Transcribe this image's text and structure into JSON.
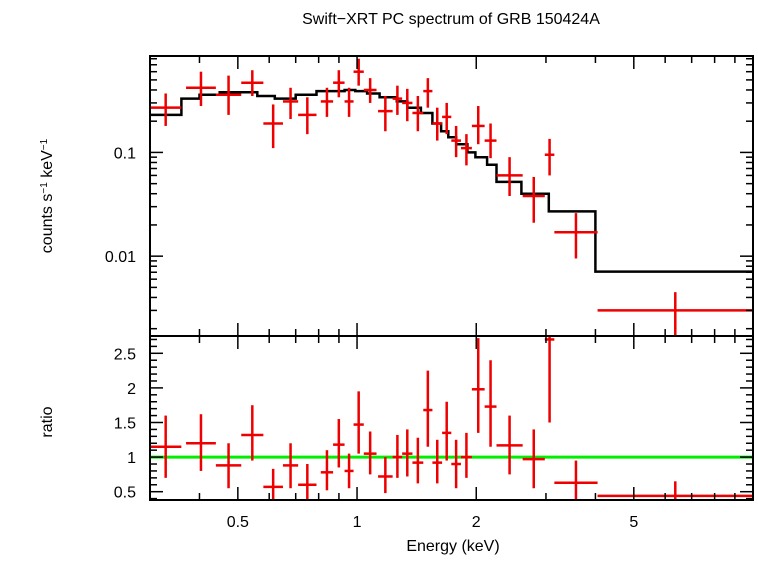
{
  "chart_data": {
    "type": "scatter",
    "title": "Swift−XRT PC spectrum of GRB 150424A",
    "xlabel": "Energy (keV)",
    "x_scale": "log",
    "xlim": [
      0.3,
      10
    ],
    "x_ticks": [
      {
        "value": 0.5,
        "label": "0.5"
      },
      {
        "value": 1,
        "label": "1"
      },
      {
        "value": 2,
        "label": "2"
      },
      {
        "value": 5,
        "label": "5"
      }
    ],
    "colors": {
      "data": "#ee0000",
      "model": "#000000",
      "ratio_line": "#00ee00",
      "axes": "#000000"
    },
    "panels": [
      {
        "id": "spectrum",
        "ylabel_main": "counts s",
        "ylabel_sup1": "−1",
        "ylabel_mid": " keV",
        "ylabel_sup2": "−1",
        "y_scale": "log",
        "ylim": [
          0.0017,
          0.85
        ],
        "y_ticks": [
          {
            "value": 0.01,
            "label": "0.01"
          },
          {
            "value": 0.1,
            "label": "0.1"
          }
        ],
        "model_steps": [
          {
            "e0": 0.3,
            "e1": 0.36,
            "y": 0.23
          },
          {
            "e0": 0.36,
            "e1": 0.4,
            "y": 0.33
          },
          {
            "e0": 0.4,
            "e1": 0.45,
            "y": 0.36
          },
          {
            "e0": 0.45,
            "e1": 0.56,
            "y": 0.38
          },
          {
            "e0": 0.56,
            "e1": 0.62,
            "y": 0.35
          },
          {
            "e0": 0.62,
            "e1": 0.7,
            "y": 0.33
          },
          {
            "e0": 0.7,
            "e1": 0.79,
            "y": 0.36
          },
          {
            "e0": 0.79,
            "e1": 0.93,
            "y": 0.39
          },
          {
            "e0": 0.93,
            "e1": 0.99,
            "y": 0.4
          },
          {
            "e0": 0.99,
            "e1": 1.06,
            "y": 0.39
          },
          {
            "e0": 1.06,
            "e1": 1.14,
            "y": 0.37
          },
          {
            "e0": 1.14,
            "e1": 1.26,
            "y": 0.34
          },
          {
            "e0": 1.26,
            "e1": 1.34,
            "y": 0.31
          },
          {
            "e0": 1.34,
            "e1": 1.45,
            "y": 0.27
          },
          {
            "e0": 1.45,
            "e1": 1.55,
            "y": 0.24
          },
          {
            "e0": 1.55,
            "e1": 1.63,
            "y": 0.19
          },
          {
            "e0": 1.63,
            "e1": 1.7,
            "y": 0.16
          },
          {
            "e0": 1.7,
            "e1": 1.78,
            "y": 0.14
          },
          {
            "e0": 1.78,
            "e1": 1.9,
            "y": 0.12
          },
          {
            "e0": 1.9,
            "e1": 1.99,
            "y": 0.1
          },
          {
            "e0": 1.99,
            "e1": 2.13,
            "y": 0.09
          },
          {
            "e0": 2.13,
            "e1": 2.25,
            "y": 0.076
          },
          {
            "e0": 2.25,
            "e1": 2.6,
            "y": 0.052
          },
          {
            "e0": 2.6,
            "e1": 3.05,
            "y": 0.04
          },
          {
            "e0": 3.05,
            "e1": 4.0,
            "y": 0.027
          },
          {
            "e0": 4.0,
            "e1": 10.0,
            "y": 0.0071
          }
        ],
        "data": [
          {
            "e0": 0.3,
            "e1": 0.36,
            "y": 0.27,
            "ylo": 0.18,
            "yhi": 0.37
          },
          {
            "e0": 0.37,
            "e1": 0.44,
            "y": 0.42,
            "ylo": 0.28,
            "yhi": 0.6
          },
          {
            "e0": 0.44,
            "e1": 0.51,
            "y": 0.36,
            "ylo": 0.23,
            "yhi": 0.55
          },
          {
            "e0": 0.51,
            "e1": 0.58,
            "y": 0.47,
            "ylo": 0.35,
            "yhi": 0.62
          },
          {
            "e0": 0.58,
            "e1": 0.65,
            "y": 0.19,
            "ylo": 0.11,
            "yhi": 0.29
          },
          {
            "e0": 0.65,
            "e1": 0.71,
            "y": 0.31,
            "ylo": 0.21,
            "yhi": 0.42
          },
          {
            "e0": 0.71,
            "e1": 0.79,
            "y": 0.23,
            "ylo": 0.15,
            "yhi": 0.34
          },
          {
            "e0": 0.81,
            "e1": 0.87,
            "y": 0.31,
            "ylo": 0.22,
            "yhi": 0.42
          },
          {
            "e0": 0.87,
            "e1": 0.93,
            "y": 0.47,
            "ylo": 0.34,
            "yhi": 0.62
          },
          {
            "e0": 0.93,
            "e1": 0.98,
            "y": 0.31,
            "ylo": 0.22,
            "yhi": 0.42
          },
          {
            "e0": 0.98,
            "e1": 1.04,
            "y": 0.6,
            "ylo": 0.44,
            "yhi": 0.8
          },
          {
            "e0": 1.04,
            "e1": 1.12,
            "y": 0.4,
            "ylo": 0.3,
            "yhi": 0.52
          },
          {
            "e0": 1.13,
            "e1": 1.23,
            "y": 0.25,
            "ylo": 0.16,
            "yhi": 0.35
          },
          {
            "e0": 1.23,
            "e1": 1.3,
            "y": 0.33,
            "ylo": 0.23,
            "yhi": 0.44
          },
          {
            "e0": 1.3,
            "e1": 1.38,
            "y": 0.3,
            "ylo": 0.2,
            "yhi": 0.41
          },
          {
            "e0": 1.38,
            "e1": 1.47,
            "y": 0.24,
            "ylo": 0.16,
            "yhi": 0.35
          },
          {
            "e0": 1.47,
            "e1": 1.55,
            "y": 0.39,
            "ylo": 0.27,
            "yhi": 0.52
          },
          {
            "e0": 1.55,
            "e1": 1.64,
            "y": 0.19,
            "ylo": 0.13,
            "yhi": 0.27
          },
          {
            "e0": 1.64,
            "e1": 1.73,
            "y": 0.22,
            "ylo": 0.15,
            "yhi": 0.3
          },
          {
            "e0": 1.73,
            "e1": 1.83,
            "y": 0.13,
            "ylo": 0.09,
            "yhi": 0.18
          },
          {
            "e0": 1.83,
            "e1": 1.95,
            "y": 0.11,
            "ylo": 0.075,
            "yhi": 0.15
          },
          {
            "e0": 1.95,
            "e1": 2.1,
            "y": 0.18,
            "ylo": 0.12,
            "yhi": 0.28
          },
          {
            "e0": 2.1,
            "e1": 2.25,
            "y": 0.13,
            "ylo": 0.088,
            "yhi": 0.19
          },
          {
            "e0": 2.25,
            "e1": 2.62,
            "y": 0.06,
            "ylo": 0.038,
            "yhi": 0.09
          },
          {
            "e0": 2.62,
            "e1": 2.98,
            "y": 0.038,
            "ylo": 0.021,
            "yhi": 0.058
          },
          {
            "e0": 2.98,
            "e1": 3.15,
            "y": 0.095,
            "ylo": 0.06,
            "yhi": 0.135
          },
          {
            "e0": 3.15,
            "e1": 4.05,
            "y": 0.017,
            "ylo": 0.0095,
            "yhi": 0.026
          },
          {
            "e0": 4.05,
            "e1": 10.0,
            "y": 0.003,
            "ylo": 0.0017,
            "yhi": 0.0045
          }
        ]
      },
      {
        "id": "ratio",
        "ylabel": "ratio",
        "y_scale": "linear",
        "ylim": [
          0.38,
          2.75
        ],
        "y_ticks": [
          {
            "value": 0.5,
            "label": "0.5"
          },
          {
            "value": 1,
            "label": "1"
          },
          {
            "value": 1.5,
            "label": "1.5"
          },
          {
            "value": 2,
            "label": "2"
          },
          {
            "value": 2.5,
            "label": "2.5"
          }
        ],
        "reference_line": 1,
        "data": [
          {
            "e0": 0.3,
            "e1": 0.36,
            "y": 1.15,
            "ylo": 0.7,
            "yhi": 1.6
          },
          {
            "e0": 0.37,
            "e1": 0.44,
            "y": 1.2,
            "ylo": 0.8,
            "yhi": 1.62
          },
          {
            "e0": 0.44,
            "e1": 0.51,
            "y": 0.88,
            "ylo": 0.55,
            "yhi": 1.2
          },
          {
            "e0": 0.51,
            "e1": 0.58,
            "y": 1.32,
            "ylo": 0.95,
            "yhi": 1.75
          },
          {
            "e0": 0.58,
            "e1": 0.65,
            "y": 0.57,
            "ylo": 0.38,
            "yhi": 0.83
          },
          {
            "e0": 0.65,
            "e1": 0.71,
            "y": 0.88,
            "ylo": 0.55,
            "yhi": 1.2
          },
          {
            "e0": 0.71,
            "e1": 0.79,
            "y": 0.6,
            "ylo": 0.38,
            "yhi": 0.9
          },
          {
            "e0": 0.81,
            "e1": 0.87,
            "y": 0.78,
            "ylo": 0.52,
            "yhi": 1.1
          },
          {
            "e0": 0.87,
            "e1": 0.93,
            "y": 1.18,
            "ylo": 0.85,
            "yhi": 1.55
          },
          {
            "e0": 0.93,
            "e1": 0.98,
            "y": 0.8,
            "ylo": 0.55,
            "yhi": 1.05
          },
          {
            "e0": 0.98,
            "e1": 1.04,
            "y": 1.47,
            "ylo": 1.05,
            "yhi": 1.95
          },
          {
            "e0": 1.04,
            "e1": 1.12,
            "y": 1.05,
            "ylo": 0.75,
            "yhi": 1.37
          },
          {
            "e0": 1.13,
            "e1": 1.23,
            "y": 0.72,
            "ylo": 0.48,
            "yhi": 1.0
          },
          {
            "e0": 1.23,
            "e1": 1.3,
            "y": 1.0,
            "ylo": 0.7,
            "yhi": 1.32
          },
          {
            "e0": 1.3,
            "e1": 1.38,
            "y": 1.05,
            "ylo": 0.72,
            "yhi": 1.4
          },
          {
            "e0": 1.38,
            "e1": 1.47,
            "y": 0.92,
            "ylo": 0.62,
            "yhi": 1.28
          },
          {
            "e0": 1.47,
            "e1": 1.55,
            "y": 1.68,
            "ylo": 1.15,
            "yhi": 2.25
          },
          {
            "e0": 1.55,
            "e1": 1.64,
            "y": 0.92,
            "ylo": 0.62,
            "yhi": 1.25
          },
          {
            "e0": 1.64,
            "e1": 1.73,
            "y": 1.35,
            "ylo": 0.95,
            "yhi": 1.8
          },
          {
            "e0": 1.73,
            "e1": 1.83,
            "y": 0.9,
            "ylo": 0.55,
            "yhi": 1.25
          },
          {
            "e0": 1.83,
            "e1": 1.95,
            "y": 1.0,
            "ylo": 0.7,
            "yhi": 1.35
          },
          {
            "e0": 1.95,
            "e1": 2.1,
            "y": 1.98,
            "ylo": 1.35,
            "yhi": 2.72
          },
          {
            "e0": 2.1,
            "e1": 2.25,
            "y": 1.73,
            "ylo": 1.15,
            "yhi": 2.4
          },
          {
            "e0": 2.25,
            "e1": 2.62,
            "y": 1.17,
            "ylo": 0.75,
            "yhi": 1.6
          },
          {
            "e0": 2.62,
            "e1": 2.98,
            "y": 0.97,
            "ylo": 0.55,
            "yhi": 1.4
          },
          {
            "e0": 2.98,
            "e1": 3.15,
            "y": 2.7,
            "ylo": 1.5,
            "yhi": 2.75
          },
          {
            "e0": 3.15,
            "e1": 4.05,
            "y": 0.63,
            "ylo": 0.38,
            "yhi": 0.95
          },
          {
            "e0": 4.05,
            "e1": 10.0,
            "y": 0.44,
            "ylo": 0.38,
            "yhi": 0.65
          }
        ]
      }
    ]
  }
}
